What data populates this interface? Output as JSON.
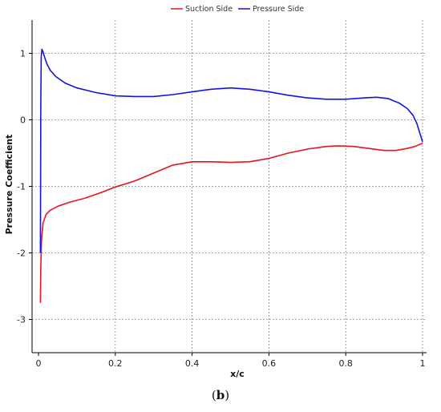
{
  "chart_data": {
    "type": "line",
    "xlabel": "x/c",
    "ylabel": "Pressure Coefficient",
    "xlim": [
      0,
      1
    ],
    "ylim": [
      -3.5,
      1.5
    ],
    "xticks": [
      0,
      0.2,
      0.4,
      0.6,
      0.8,
      1
    ],
    "xtick_labels": [
      "0",
      "0.2",
      "0.4",
      "0.6",
      "0.8",
      "1"
    ],
    "yticks": [
      -3,
      -2,
      -1,
      0,
      1
    ],
    "ytick_labels": [
      "-3",
      "-2",
      "-1",
      "0",
      "1"
    ],
    "grid": true,
    "legend_position": "top-center",
    "series": [
      {
        "name": "Suction Side",
        "color": "#e8141c",
        "x": [
          0.005,
          0.006,
          0.008,
          0.012,
          0.02,
          0.03,
          0.05,
          0.08,
          0.12,
          0.16,
          0.2,
          0.25,
          0.3,
          0.35,
          0.4,
          0.45,
          0.5,
          0.55,
          0.6,
          0.65,
          0.7,
          0.75,
          0.78,
          0.82,
          0.86,
          0.9,
          0.93,
          0.96,
          0.98,
          1.0
        ],
        "y": [
          -2.75,
          -2.2,
          -1.8,
          -1.55,
          -1.42,
          -1.36,
          -1.3,
          -1.24,
          -1.18,
          -1.1,
          -1.01,
          -0.92,
          -0.8,
          -0.68,
          -0.63,
          -0.63,
          -0.64,
          -0.63,
          -0.58,
          -0.5,
          -0.44,
          -0.4,
          -0.39,
          -0.4,
          -0.43,
          -0.46,
          -0.46,
          -0.43,
          -0.4,
          -0.35
        ]
      },
      {
        "name": "Pressure Side",
        "color": "#1414e0",
        "x": [
          0.005,
          0.006,
          0.007,
          0.009,
          0.012,
          0.016,
          0.022,
          0.03,
          0.045,
          0.07,
          0.1,
          0.15,
          0.2,
          0.25,
          0.3,
          0.35,
          0.4,
          0.45,
          0.5,
          0.55,
          0.6,
          0.65,
          0.7,
          0.75,
          0.8,
          0.85,
          0.88,
          0.91,
          0.94,
          0.96,
          0.975,
          0.985,
          0.993,
          1.0
        ],
        "y": [
          -2.0,
          0.3,
          0.95,
          1.06,
          1.02,
          0.94,
          0.84,
          0.75,
          0.65,
          0.55,
          0.48,
          0.41,
          0.36,
          0.35,
          0.35,
          0.38,
          0.42,
          0.46,
          0.48,
          0.46,
          0.42,
          0.37,
          0.33,
          0.31,
          0.31,
          0.33,
          0.34,
          0.32,
          0.25,
          0.17,
          0.07,
          -0.05,
          -0.2,
          -0.33
        ]
      }
    ]
  },
  "panel_label": "b"
}
